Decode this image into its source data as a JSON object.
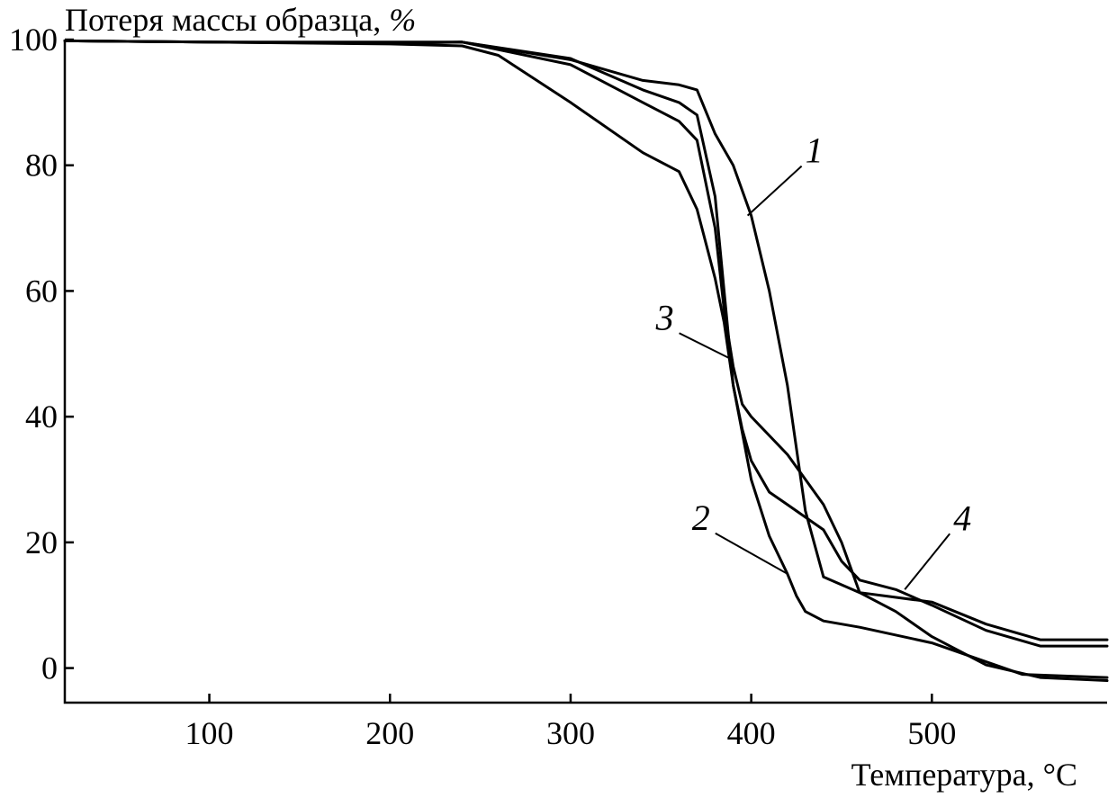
{
  "chart_data": {
    "type": "line",
    "title": "",
    "ylabel": "Потеря массы образца,",
    "ylabel_unit": "%",
    "xlabel": "Температура, °C",
    "xlim": [
      20,
      597
    ],
    "ylim": [
      -5.5,
      100
    ],
    "x_ticks": [
      100,
      200,
      300,
      400,
      500
    ],
    "y_ticks": [
      0,
      20,
      40,
      60,
      80,
      100
    ],
    "grid": false,
    "legend": "none",
    "series": [
      {
        "name": "1",
        "x": [
          20,
          100,
          200,
          240,
          300,
          340,
          360,
          370,
          380,
          390,
          400,
          410,
          420,
          425,
          430,
          440,
          460,
          500,
          530,
          560,
          597
        ],
        "y": [
          99.8,
          99.6,
          99.5,
          99.6,
          96.8,
          93.5,
          92.8,
          92.0,
          85.0,
          80.0,
          72.0,
          60.0,
          45.0,
          35.0,
          25.0,
          14.5,
          12.0,
          10.5,
          7.0,
          4.5,
          4.5
        ]
      },
      {
        "name": "2",
        "x": [
          20,
          100,
          200,
          240,
          260,
          300,
          340,
          360,
          370,
          380,
          385,
          390,
          400,
          410,
          420,
          425,
          430,
          440,
          460,
          500,
          530,
          550,
          597
        ],
        "y": [
          99.8,
          99.6,
          99.3,
          99.0,
          97.5,
          90.0,
          82.0,
          79.0,
          73.0,
          62.0,
          55.0,
          45.0,
          30.0,
          21.0,
          15.0,
          11.5,
          9.0,
          7.5,
          6.5,
          4.0,
          1.0,
          -1.0,
          -1.5
        ]
      },
      {
        "name": "3",
        "x": [
          20,
          100,
          200,
          240,
          300,
          340,
          360,
          370,
          380,
          385,
          390,
          395,
          400,
          420,
          440,
          450,
          460,
          480,
          500,
          530,
          560,
          597
        ],
        "y": [
          99.8,
          99.6,
          99.4,
          99.6,
          96.0,
          90.0,
          87.0,
          84.0,
          70.0,
          57.0,
          48.0,
          42.0,
          40.0,
          34.0,
          26.0,
          20.0,
          12.0,
          9.0,
          5.0,
          0.5,
          -1.5,
          -2.0
        ]
      },
      {
        "name": "4",
        "x": [
          20,
          100,
          200,
          240,
          300,
          340,
          360,
          370,
          380,
          385,
          390,
          395,
          400,
          410,
          420,
          440,
          450,
          460,
          480,
          500,
          530,
          560,
          597
        ],
        "y": [
          99.8,
          99.6,
          99.6,
          99.6,
          97.0,
          92.0,
          90.0,
          88.0,
          75.0,
          60.0,
          45.0,
          38.0,
          33.0,
          28.0,
          26.0,
          22.0,
          17.0,
          14.0,
          12.5,
          10.0,
          6.0,
          3.5,
          3.5
        ]
      }
    ],
    "annotations": [
      {
        "text": "1",
        "series": "1",
        "anchor": {
          "x": 398,
          "y": 72
        }
      },
      {
        "text": "2",
        "series": "2",
        "anchor": {
          "x": 420,
          "y": 15
        }
      },
      {
        "text": "3",
        "series": "3",
        "anchor": {
          "x": 390,
          "y": 49
        }
      },
      {
        "text": "4",
        "series": "4",
        "anchor": {
          "x": 485,
          "y": 12.5
        }
      }
    ]
  }
}
